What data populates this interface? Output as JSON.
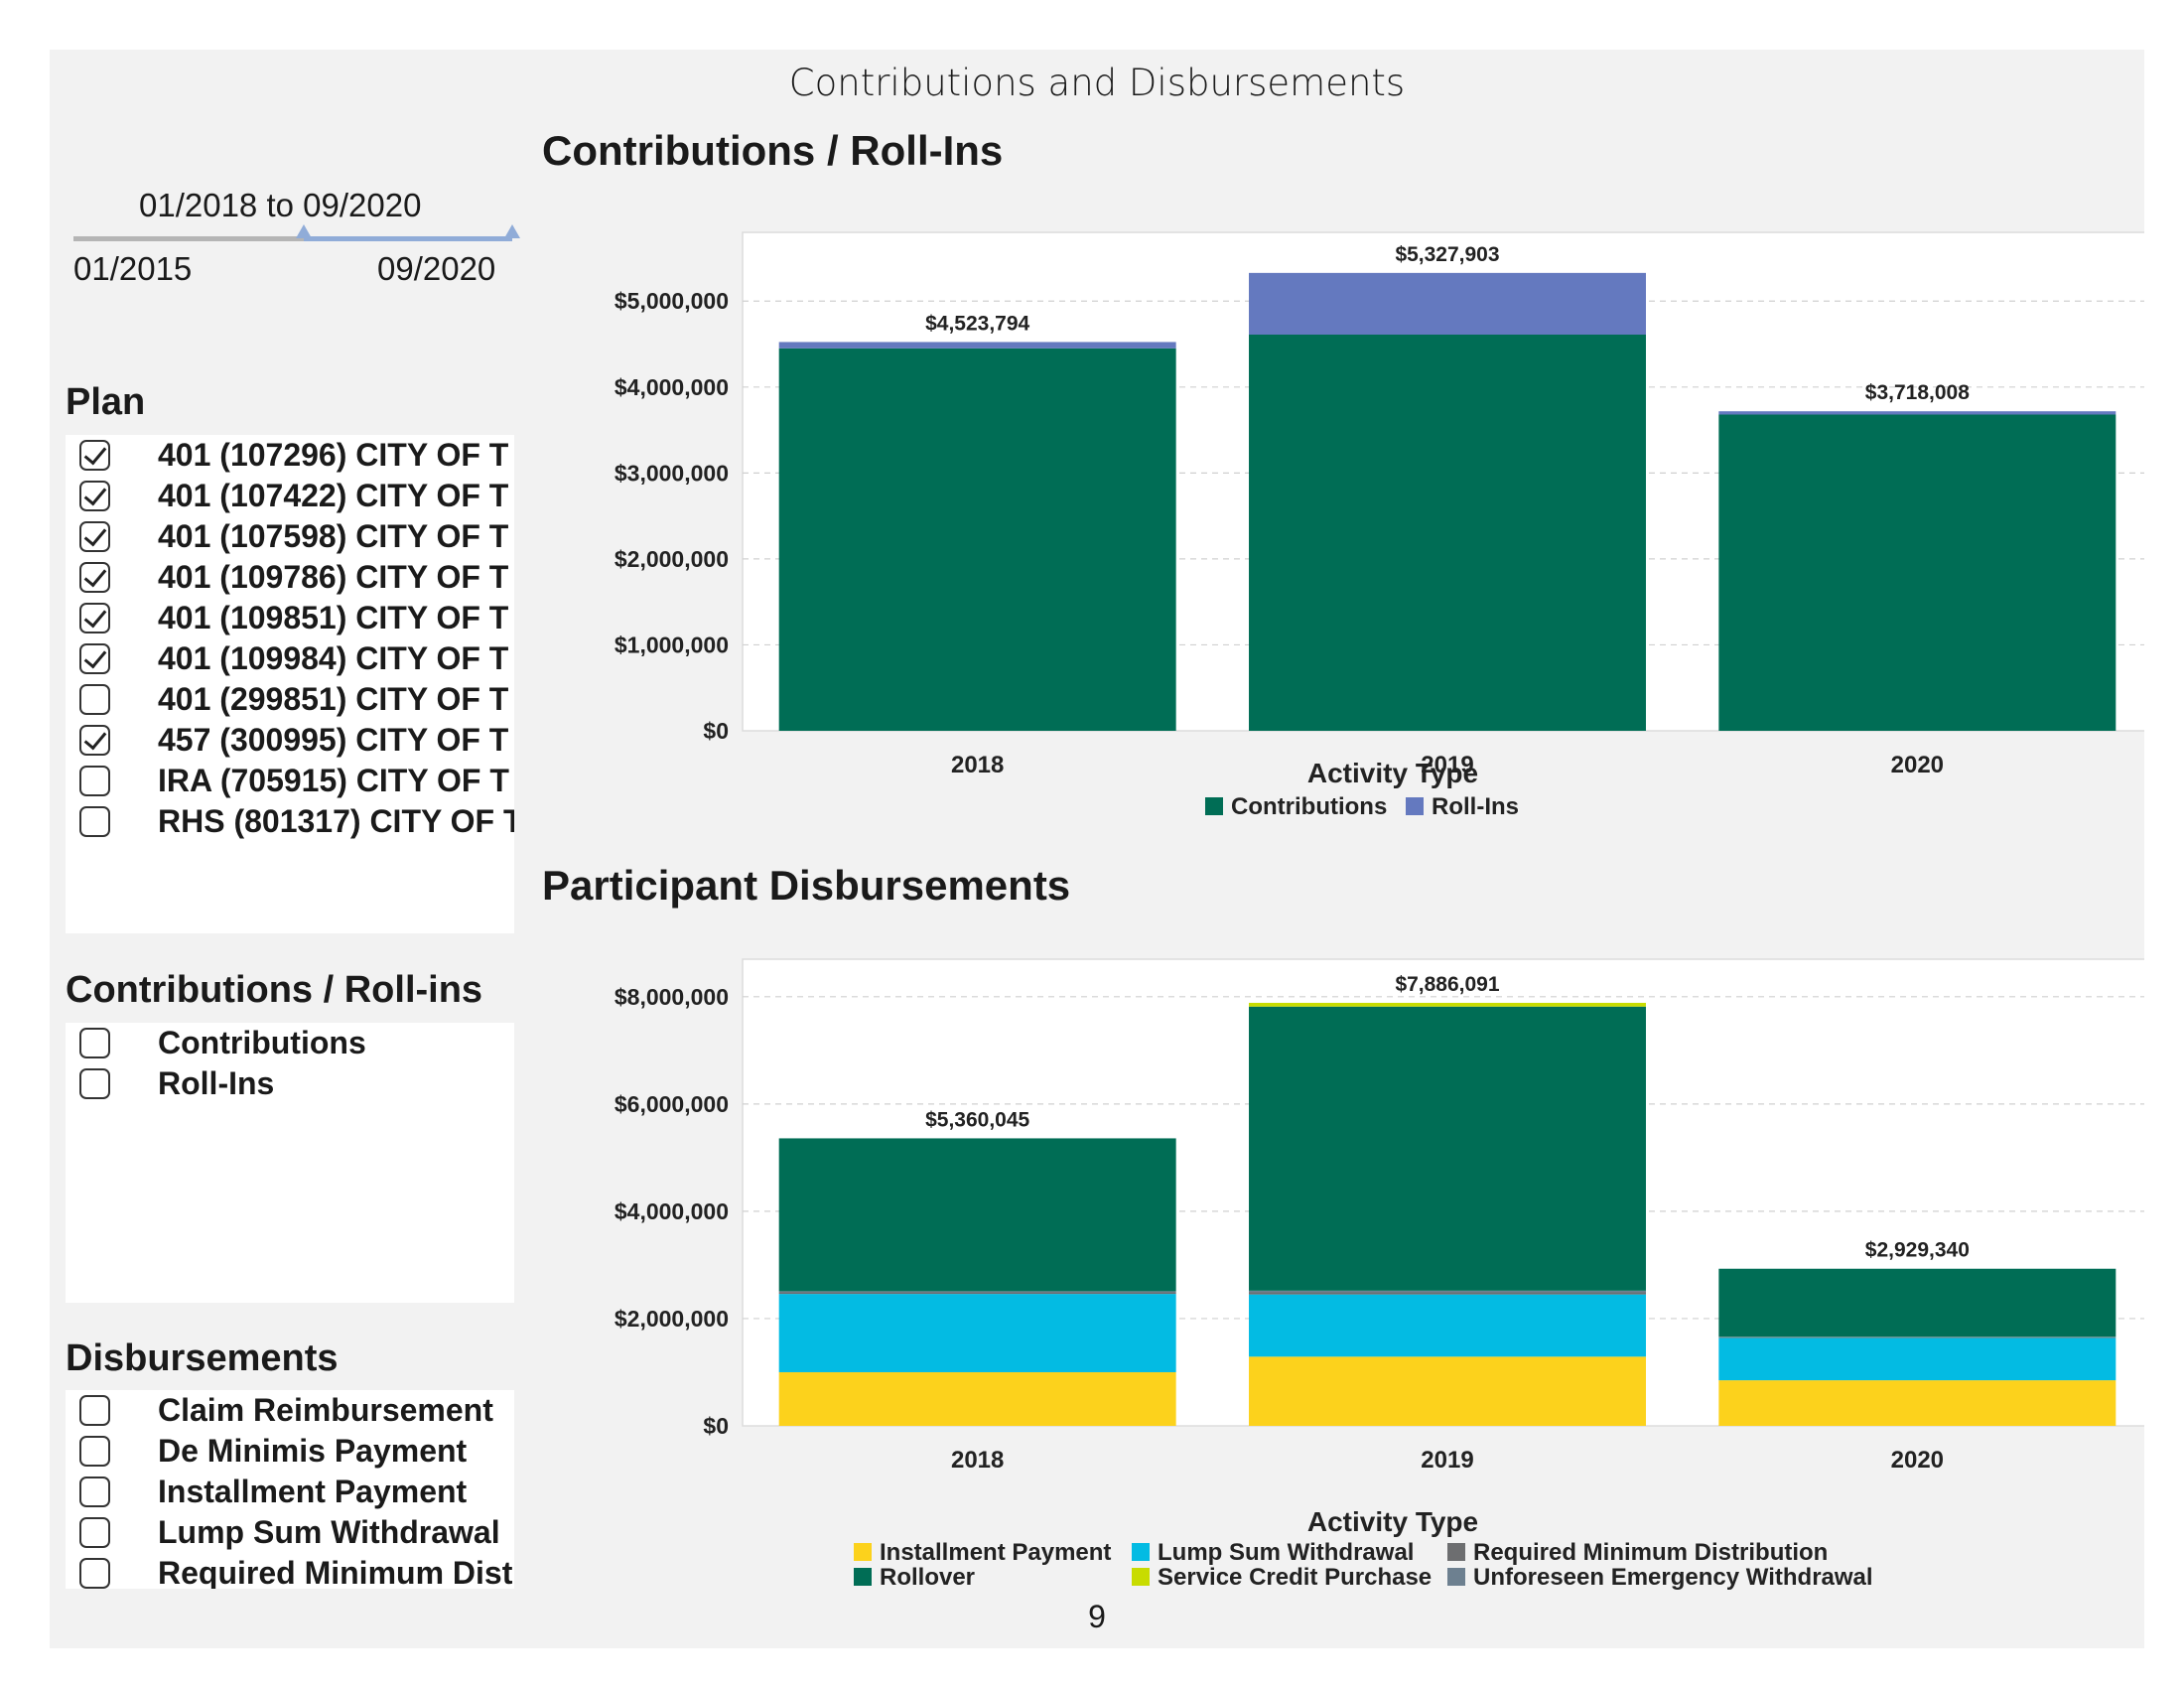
{
  "page": {
    "title": "Contributions and Disbursements",
    "page_number": "9"
  },
  "date_filter": {
    "range_text": "01/2018 to 09/2020",
    "min_label": "01/2015",
    "max_label": "09/2020"
  },
  "plan_filter": {
    "heading": "Plan",
    "items": [
      {
        "label": "401 (107296) CITY OF T",
        "checked": true
      },
      {
        "label": "401 (107422) CITY OF T",
        "checked": true
      },
      {
        "label": "401 (107598) CITY OF T",
        "checked": true
      },
      {
        "label": "401 (109786) CITY OF T",
        "checked": true
      },
      {
        "label": "401 (109851) CITY OF T",
        "checked": true
      },
      {
        "label": "401 (109984) CITY OF T",
        "checked": true
      },
      {
        "label": "401 (299851) CITY OF T",
        "checked": false
      },
      {
        "label": "457 (300995) CITY OF T",
        "checked": true
      },
      {
        "label": "IRA (705915) CITY OF T",
        "checked": false
      },
      {
        "label": "RHS (801317) CITY OF T",
        "checked": false
      }
    ]
  },
  "contrib_filter": {
    "heading": "Contributions / Roll-ins",
    "items": [
      {
        "label": "Contributions",
        "checked": false
      },
      {
        "label": "Roll-Ins",
        "checked": false
      }
    ]
  },
  "disb_filter": {
    "heading": "Disbursements",
    "items": [
      {
        "label": "Claim Reimbursement",
        "checked": false
      },
      {
        "label": "De Minimis Payment",
        "checked": false
      },
      {
        "label": "Installment Payment",
        "checked": false
      },
      {
        "label": "Lump Sum Withdrawal",
        "checked": false
      },
      {
        "label": "Required Minimum Distribution",
        "checked": false
      }
    ]
  },
  "chart_data": [
    {
      "type": "bar",
      "stacked": true,
      "title": "Contributions / Roll-Ins",
      "categories": [
        "2018",
        "2019",
        "2020"
      ],
      "ylim": [
        0,
        5800000
      ],
      "yticks": [
        0,
        1000000,
        2000000,
        3000000,
        4000000,
        5000000
      ],
      "ytick_labels": [
        "$0",
        "$1,000,000",
        "$2,000,000",
        "$3,000,000",
        "$4,000,000",
        "$5,000,000"
      ],
      "grid": true,
      "legend_title": "Activity  Type",
      "legend_position": "bottom",
      "series": [
        {
          "name": "Contributions",
          "color": "#006d55",
          "values": [
            4450000,
            4610000,
            3680000
          ]
        },
        {
          "name": "Roll-Ins",
          "color": "#6479bf",
          "values": [
            73794,
            717903,
            38008
          ]
        }
      ],
      "totals": [
        4523794,
        5327903,
        3718008
      ],
      "total_labels": [
        "$4,523,794",
        "$5,327,903",
        "$3,718,008"
      ]
    },
    {
      "type": "bar",
      "stacked": true,
      "title": "Participant Disbursements",
      "categories": [
        "2018",
        "2019",
        "2020"
      ],
      "ylim": [
        0,
        8700000
      ],
      "yticks": [
        0,
        2000000,
        4000000,
        6000000,
        8000000
      ],
      "ytick_labels": [
        "$0",
        "$2,000,000",
        "$4,000,000",
        "$6,000,000",
        "$8,000,000"
      ],
      "grid": true,
      "legend_title": "Activity  Type",
      "legend_position": "bottom",
      "series": [
        {
          "name": "Installment Payment",
          "color": "#fcd21c",
          "values": [
            1000000,
            1290000,
            850000
          ]
        },
        {
          "name": "Lump Sum Withdrawal",
          "color": "#03bbe3",
          "values": [
            1460000,
            1160000,
            790000
          ]
        },
        {
          "name": "Required Minimum Distribution",
          "color": "#6d6e70",
          "values": [
            30000,
            40000,
            10000
          ]
        },
        {
          "name": "Unforeseen Emergency Withdrawal",
          "color": "#6d8090",
          "values": [
            20000,
            30000,
            10000
          ]
        },
        {
          "name": "Rollover",
          "color": "#006d55",
          "values": [
            2850045,
            5296091,
            1269340
          ]
        },
        {
          "name": "Service Credit Purchase",
          "color": "#c8dc00",
          "values": [
            0,
            70000,
            0
          ]
        }
      ],
      "legend_order": [
        "Installment Payment",
        "Lump Sum Withdrawal",
        "Required Minimum Distribution",
        "Rollover",
        "Service Credit Purchase",
        "Unforeseen Emergency Withdrawal"
      ],
      "totals": [
        5360045,
        7886091,
        2929340
      ],
      "total_labels": [
        "$5,360,045",
        "$7,886,091",
        "$2,929,340"
      ]
    }
  ]
}
